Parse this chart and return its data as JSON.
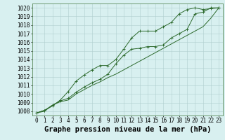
{
  "x": [
    0,
    1,
    2,
    3,
    4,
    5,
    6,
    7,
    8,
    9,
    10,
    11,
    12,
    13,
    14,
    15,
    16,
    17,
    18,
    19,
    20,
    21,
    22,
    23
  ],
  "line1": [
    1007.8,
    1008.0,
    1008.7,
    1009.1,
    1009.3,
    1010.0,
    1010.5,
    1011.0,
    1011.4,
    1011.9,
    1012.3,
    1012.8,
    1013.3,
    1013.8,
    1014.3,
    1014.8,
    1015.3,
    1015.8,
    1016.3,
    1016.8,
    1017.3,
    1017.8,
    1018.8,
    1020.0
  ],
  "line2": [
    1007.8,
    1008.1,
    1008.6,
    1009.3,
    1010.3,
    1011.5,
    1012.2,
    1012.8,
    1013.3,
    1013.3,
    1014.0,
    1015.2,
    1016.5,
    1017.3,
    1017.3,
    1017.3,
    1017.8,
    1018.3,
    1019.3,
    1019.8,
    1020.0,
    1019.8,
    1019.9,
    1020.0
  ],
  "line3": [
    1007.8,
    1008.1,
    1008.7,
    1009.2,
    1009.5,
    1010.2,
    1010.8,
    1011.3,
    1011.7,
    1012.3,
    1013.5,
    1014.5,
    1015.2,
    1015.3,
    1015.5,
    1015.5,
    1015.7,
    1016.5,
    1017.0,
    1017.5,
    1019.3,
    1019.5,
    1020.0,
    1020.0
  ],
  "ylim": [
    1007.5,
    1020.5
  ],
  "xlim": [
    -0.5,
    23.5
  ],
  "yticks": [
    1008,
    1009,
    1010,
    1011,
    1012,
    1013,
    1014,
    1015,
    1016,
    1017,
    1018,
    1019,
    1020
  ],
  "xticks": [
    0,
    1,
    2,
    3,
    4,
    5,
    6,
    7,
    8,
    9,
    10,
    11,
    12,
    13,
    14,
    15,
    16,
    17,
    18,
    19,
    20,
    21,
    22,
    23
  ],
  "line_color": "#2d6a2d",
  "bg_color": "#d8f0f0",
  "grid_color": "#b0cece",
  "xlabel": "Graphe pression niveau de la mer (hPa)",
  "axis_fontsize": 5.5,
  "xlabel_fontsize": 7.5,
  "marker": "+",
  "markersize": 3.5,
  "linewidth": 0.7
}
